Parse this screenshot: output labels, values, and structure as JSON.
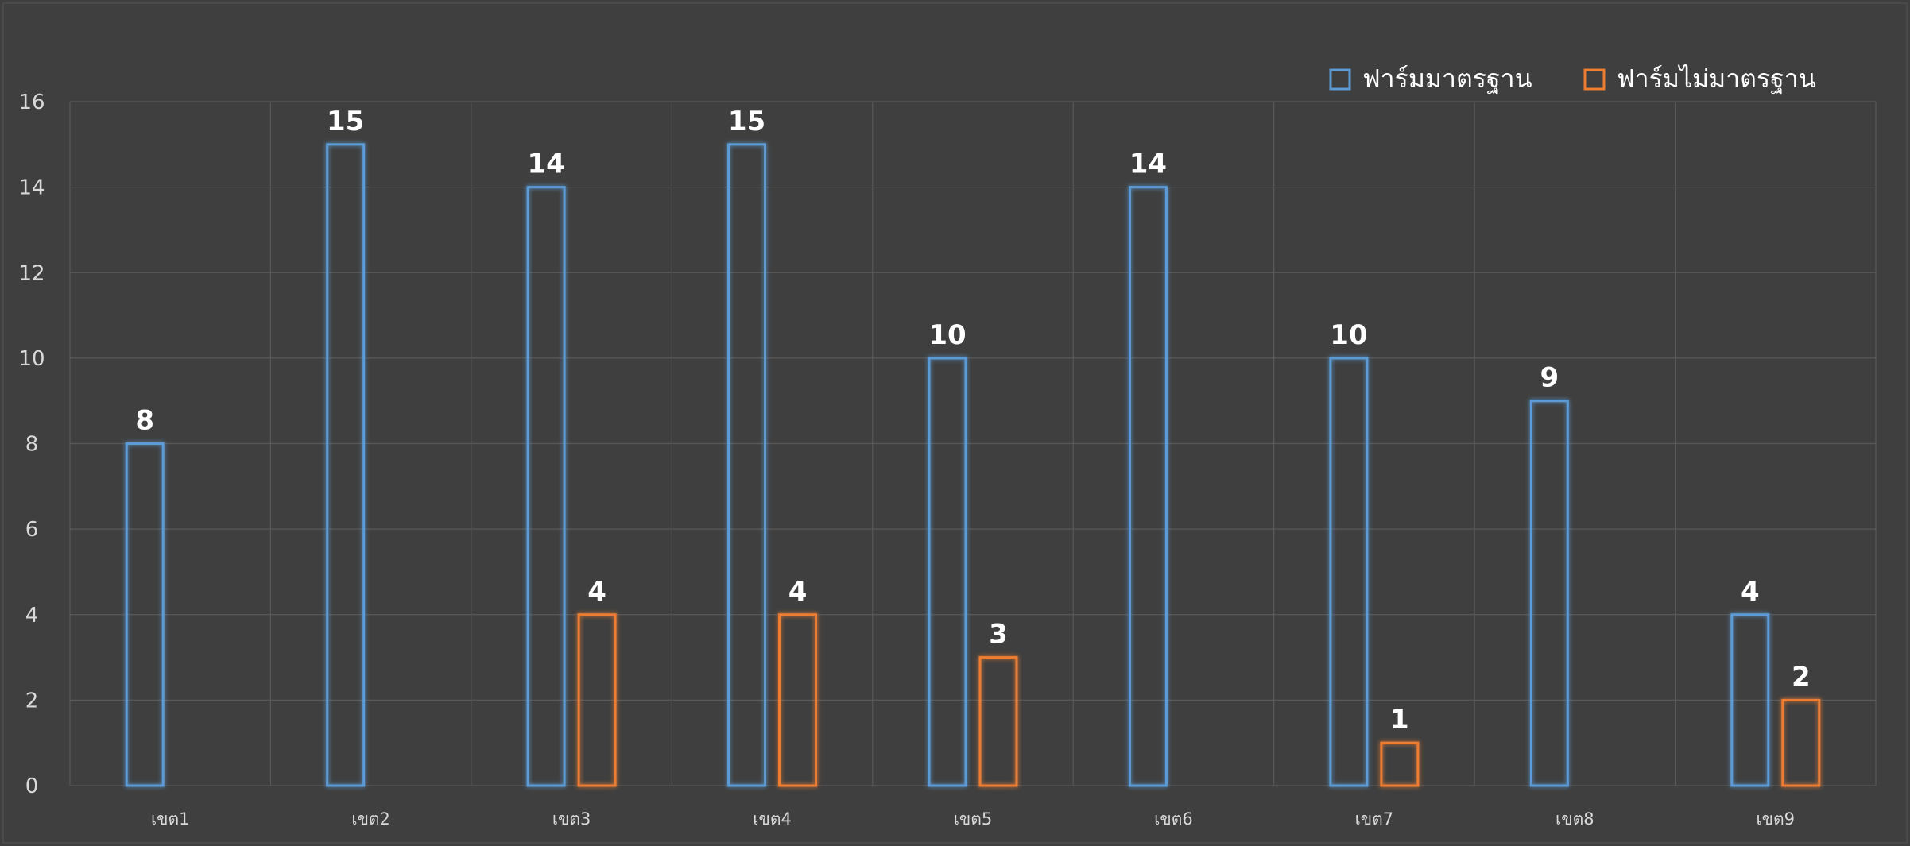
{
  "chart_data": {
    "type": "bar",
    "title": "",
    "xlabel": "",
    "ylabel": "",
    "categories": [
      "เขต1",
      "เขต2",
      "เขต3",
      "เขต4",
      "เขต5",
      "เขต6",
      "เขต7",
      "เขต8",
      "เขต9"
    ],
    "series": [
      {
        "name": "ฟาร์มมาตรฐาน",
        "color": "#5b9bd5",
        "values": [
          8,
          15,
          14,
          15,
          10,
          14,
          10,
          9,
          4
        ]
      },
      {
        "name": "ฟาร์มไม่มาตรฐาน",
        "color": "#ed7d31",
        "values": [
          null,
          null,
          4,
          4,
          3,
          null,
          1,
          null,
          2
        ]
      }
    ],
    "ylim": [
      0,
      16
    ],
    "yticks": [
      0,
      2,
      4,
      6,
      8,
      10,
      12,
      14,
      16
    ],
    "grid": true,
    "legend": "top-right",
    "data_labels": true,
    "background": "#3f3f3f"
  }
}
